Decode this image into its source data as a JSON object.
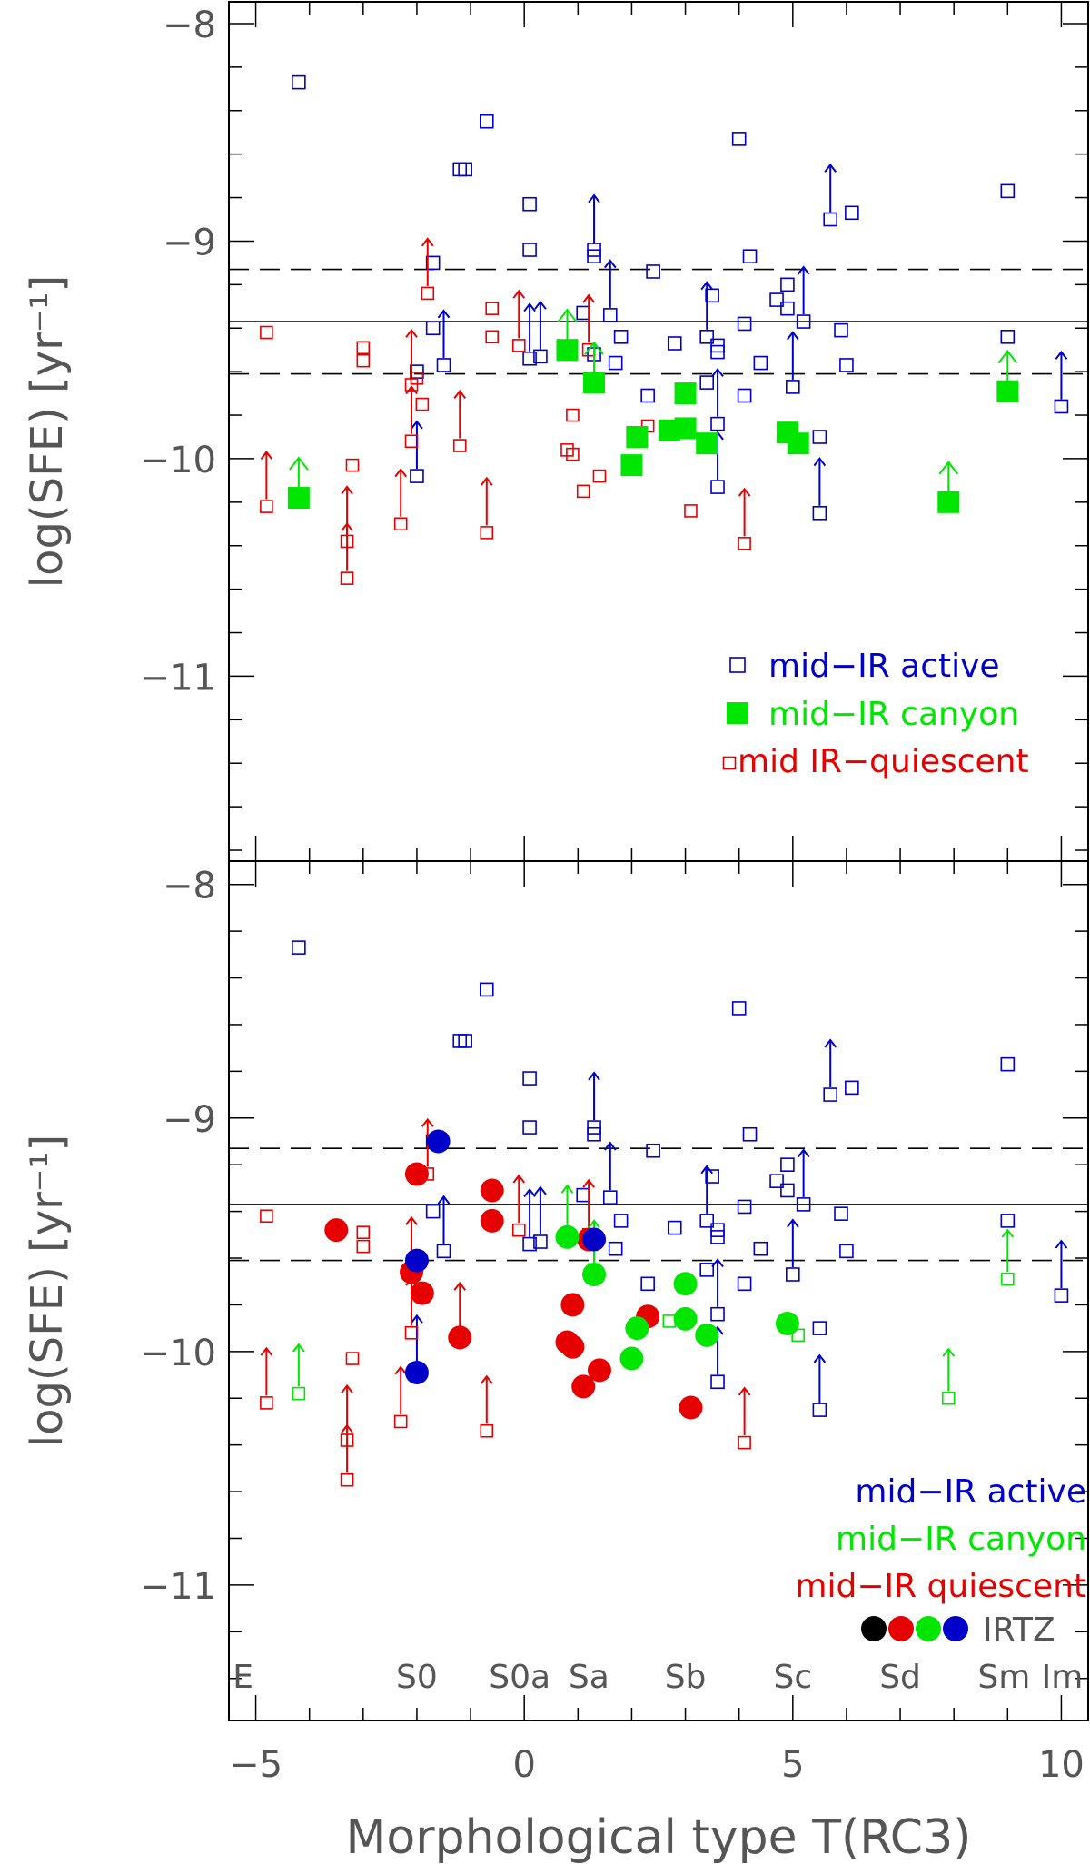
{
  "colors": {
    "active": "#0000c8",
    "canyon": "#00e600",
    "quiescent": "#e60000",
    "black": "#000000",
    "axis": "#000000"
  },
  "chart_data": {
    "type": "scatter",
    "x": {
      "label": "Morphological type T(RC3)",
      "range": [
        -5.5,
        10.5
      ],
      "ticks": [
        -5,
        0,
        5,
        10
      ],
      "tick_labels": [
        "−5",
        "0",
        "5",
        "10"
      ]
    },
    "y_tick_labels": [
      "−8",
      "−9",
      "−10",
      "−11"
    ],
    "morph_labels": [
      {
        "text": "E",
        "t": -5
      },
      {
        "text": "S0",
        "t": -2
      },
      {
        "text": "S0a",
        "t": 0
      },
      {
        "text": "Sa",
        "t": 1
      },
      {
        "text": "Sb",
        "t": 3
      },
      {
        "text": "Sc",
        "t": 5
      },
      {
        "text": "Sd",
        "t": 7
      },
      {
        "text": "Sm",
        "t": 9
      },
      {
        "text": "Im",
        "t": 10
      }
    ],
    "reference_lines": [
      {
        "y": -9.13,
        "style": "dashed"
      },
      {
        "y": -9.37,
        "style": "solid"
      },
      {
        "y": -9.61,
        "style": "dashed"
      }
    ],
    "series": {
      "active": [
        {
          "x": -4.2,
          "y": -8.27,
          "lim": false
        },
        {
          "x": -0.7,
          "y": -8.45,
          "lim": false
        },
        {
          "x": -1.2,
          "y": -8.67,
          "lim": false
        },
        {
          "x": -1.1,
          "y": -8.67,
          "lim": false
        },
        {
          "x": 0.1,
          "y": -8.83,
          "lim": false
        },
        {
          "x": 4.0,
          "y": -8.53,
          "lim": false
        },
        {
          "x": 5.7,
          "y": -8.9,
          "lim": true
        },
        {
          "x": 6.1,
          "y": -8.87,
          "lim": false
        },
        {
          "x": 9.0,
          "y": -8.77,
          "lim": false
        },
        {
          "x": 0.1,
          "y": -9.04,
          "lim": false
        },
        {
          "x": 1.3,
          "y": -9.04,
          "lim": true
        },
        {
          "x": 1.3,
          "y": -9.07,
          "lim": false
        },
        {
          "x": 2.4,
          "y": -9.14,
          "lim": false
        },
        {
          "x": 4.2,
          "y": -9.07,
          "lim": false
        },
        {
          "x": -1.7,
          "y": -9.1,
          "lim": false
        },
        {
          "x": 1.6,
          "y": -9.34,
          "lim": true
        },
        {
          "x": 3.5,
          "y": -9.25,
          "lim": false
        },
        {
          "x": 4.9,
          "y": -9.2,
          "lim": false
        },
        {
          "x": 4.7,
          "y": -9.27,
          "lim": false
        },
        {
          "x": 4.9,
          "y": -9.31,
          "lim": false
        },
        {
          "x": 5.2,
          "y": -9.37,
          "lim": true
        },
        {
          "x": 1.1,
          "y": -9.33,
          "lim": false
        },
        {
          "x": -1.7,
          "y": -9.4,
          "lim": false
        },
        {
          "x": -1.5,
          "y": -9.57,
          "lim": true
        },
        {
          "x": 0.1,
          "y": -9.54,
          "lim": true
        },
        {
          "x": 0.3,
          "y": -9.53,
          "lim": true
        },
        {
          "x": 1.3,
          "y": -9.52,
          "lim": false
        },
        {
          "x": 1.8,
          "y": -9.44,
          "lim": false
        },
        {
          "x": 1.7,
          "y": -9.56,
          "lim": false
        },
        {
          "x": 2.8,
          "y": -9.47,
          "lim": false
        },
        {
          "x": 3.4,
          "y": -9.44,
          "lim": true
        },
        {
          "x": 3.6,
          "y": -9.48,
          "lim": false
        },
        {
          "x": 3.6,
          "y": -9.51,
          "lim": false
        },
        {
          "x": 3.4,
          "y": -9.65,
          "lim": false
        },
        {
          "x": 4.1,
          "y": -9.38,
          "lim": false
        },
        {
          "x": 4.4,
          "y": -9.56,
          "lim": false
        },
        {
          "x": 5.0,
          "y": -9.67,
          "lim": true
        },
        {
          "x": 5.9,
          "y": -9.41,
          "lim": false
        },
        {
          "x": 6.0,
          "y": -9.57,
          "lim": false
        },
        {
          "x": -2.0,
          "y": -9.6,
          "lim": false
        },
        {
          "x": 2.3,
          "y": -9.71,
          "lim": false
        },
        {
          "x": 4.1,
          "y": -9.71,
          "lim": false
        },
        {
          "x": 3.6,
          "y": -9.84,
          "lim": true
        },
        {
          "x": 5.5,
          "y": -9.9,
          "lim": false
        },
        {
          "x": 9.0,
          "y": -9.44,
          "lim": false
        },
        {
          "x": 10.0,
          "y": -9.76,
          "lim": true
        },
        {
          "x": -2.0,
          "y": -10.08,
          "lim": true
        },
        {
          "x": 3.6,
          "y": -10.13,
          "lim": true
        },
        {
          "x": 5.5,
          "y": -10.25,
          "lim": true
        }
      ],
      "canyon": [
        {
          "x": -4.2,
          "y": -10.18,
          "lim": true
        },
        {
          "x": 0.8,
          "y": -9.5,
          "lim": true
        },
        {
          "x": 1.3,
          "y": -9.65,
          "lim": true
        },
        {
          "x": 3.0,
          "y": -9.7,
          "lim": false
        },
        {
          "x": 2.1,
          "y": -9.9,
          "lim": false
        },
        {
          "x": 2.7,
          "y": -9.87,
          "lim": false
        },
        {
          "x": 3.0,
          "y": -9.86,
          "lim": false
        },
        {
          "x": 3.4,
          "y": -9.93,
          "lim": false
        },
        {
          "x": 2.0,
          "y": -10.03,
          "lim": false
        },
        {
          "x": 4.9,
          "y": -9.88,
          "lim": false
        },
        {
          "x": 5.1,
          "y": -9.93,
          "lim": false
        },
        {
          "x": 7.9,
          "y": -10.2,
          "lim": true
        },
        {
          "x": 9.0,
          "y": -9.69,
          "lim": true
        }
      ],
      "quiescent": [
        {
          "x": -4.8,
          "y": -9.42,
          "lim": false
        },
        {
          "x": -3.0,
          "y": -9.49,
          "lim": false
        },
        {
          "x": -3.0,
          "y": -9.55,
          "lim": false
        },
        {
          "x": -3.2,
          "y": -10.03,
          "lim": false
        },
        {
          "x": -4.8,
          "y": -10.22,
          "lim": true
        },
        {
          "x": -3.3,
          "y": -10.38,
          "lim": true
        },
        {
          "x": -3.3,
          "y": -10.55,
          "lim": true
        },
        {
          "x": -2.3,
          "y": -10.3,
          "lim": true
        },
        {
          "x": -1.8,
          "y": -9.24,
          "lim": true
        },
        {
          "x": -2.1,
          "y": -9.66,
          "lim": true
        },
        {
          "x": -2.0,
          "y": -9.63,
          "lim": false
        },
        {
          "x": -1.9,
          "y": -9.75,
          "lim": false
        },
        {
          "x": -2.1,
          "y": -9.92,
          "lim": true
        },
        {
          "x": -1.2,
          "y": -9.94,
          "lim": true
        },
        {
          "x": -0.6,
          "y": -9.31,
          "lim": false
        },
        {
          "x": -0.6,
          "y": -9.44,
          "lim": false
        },
        {
          "x": -0.1,
          "y": -9.48,
          "lim": true
        },
        {
          "x": -0.7,
          "y": -10.34,
          "lim": true
        },
        {
          "x": 0.9,
          "y": -9.8,
          "lim": false
        },
        {
          "x": 0.8,
          "y": -9.96,
          "lim": false
        },
        {
          "x": 0.9,
          "y": -9.98,
          "lim": false
        },
        {
          "x": 1.2,
          "y": -9.5,
          "lim": true
        },
        {
          "x": 1.1,
          "y": -10.15,
          "lim": false
        },
        {
          "x": 1.4,
          "y": -10.08,
          "lim": false
        },
        {
          "x": 2.3,
          "y": -9.85,
          "lim": false
        },
        {
          "x": 3.1,
          "y": -10.24,
          "lim": false
        },
        {
          "x": 4.1,
          "y": -10.39,
          "lim": true
        }
      ]
    },
    "irtz": {
      "black": [],
      "red": [
        {
          "x": -2.0,
          "y": -9.24
        },
        {
          "x": -2.1,
          "y": -9.66
        },
        {
          "x": -1.9,
          "y": -9.75
        },
        {
          "x": -1.2,
          "y": -9.94
        },
        {
          "x": -0.6,
          "y": -9.31
        },
        {
          "x": -0.6,
          "y": -9.44
        },
        {
          "x": 0.9,
          "y": -9.8
        },
        {
          "x": 0.8,
          "y": -9.96
        },
        {
          "x": 0.9,
          "y": -9.98
        },
        {
          "x": 1.1,
          "y": -10.15
        },
        {
          "x": 1.4,
          "y": -10.08
        },
        {
          "x": 2.3,
          "y": -9.85
        },
        {
          "x": 3.1,
          "y": -10.24
        },
        {
          "x": 1.2,
          "y": -9.52
        },
        {
          "x": -3.5,
          "y": -9.48
        }
      ],
      "green": [
        {
          "x": 0.8,
          "y": -9.51
        },
        {
          "x": 1.3,
          "y": -9.67
        },
        {
          "x": 3.0,
          "y": -9.71
        },
        {
          "x": 2.1,
          "y": -9.9
        },
        {
          "x": 3.0,
          "y": -9.86
        },
        {
          "x": 3.4,
          "y": -9.93
        },
        {
          "x": 2.0,
          "y": -10.03
        },
        {
          "x": 4.9,
          "y": -9.88
        }
      ],
      "blue": [
        {
          "x": -1.6,
          "y": -9.1
        },
        {
          "x": -2.0,
          "y": -9.61
        },
        {
          "x": -2.0,
          "y": -10.09
        },
        {
          "x": 1.3,
          "y": -9.52
        }
      ]
    },
    "panels": [
      {
        "name": "top",
        "ylabel": "log(SFE) [yr⁻¹]",
        "ylim": [
          -11.85,
          -7.9
        ],
        "legend_position": "lower-right",
        "legend": [
          {
            "label": "mid−IR active",
            "series": "active",
            "marker": "open-square"
          },
          {
            "label": "mid−IR canyon",
            "series": "canyon",
            "marker": "filled-square"
          },
          {
            "label": "mid IR−quiescent",
            "series": "quiescent",
            "marker": "small-open-square"
          }
        ]
      },
      {
        "name": "bottom",
        "ylabel": "log(SFE) [yr⁻¹]",
        "ylim": [
          -11.58,
          -7.9
        ],
        "legend_position": "lower-right",
        "legend": [
          {
            "label": "mid−IR active",
            "series": "active"
          },
          {
            "label": "mid−IR canyon",
            "series": "canyon"
          },
          {
            "label": "mid−IR quiescent",
            "series": "quiescent"
          }
        ],
        "irtz_label": "IRTZ"
      }
    ]
  }
}
